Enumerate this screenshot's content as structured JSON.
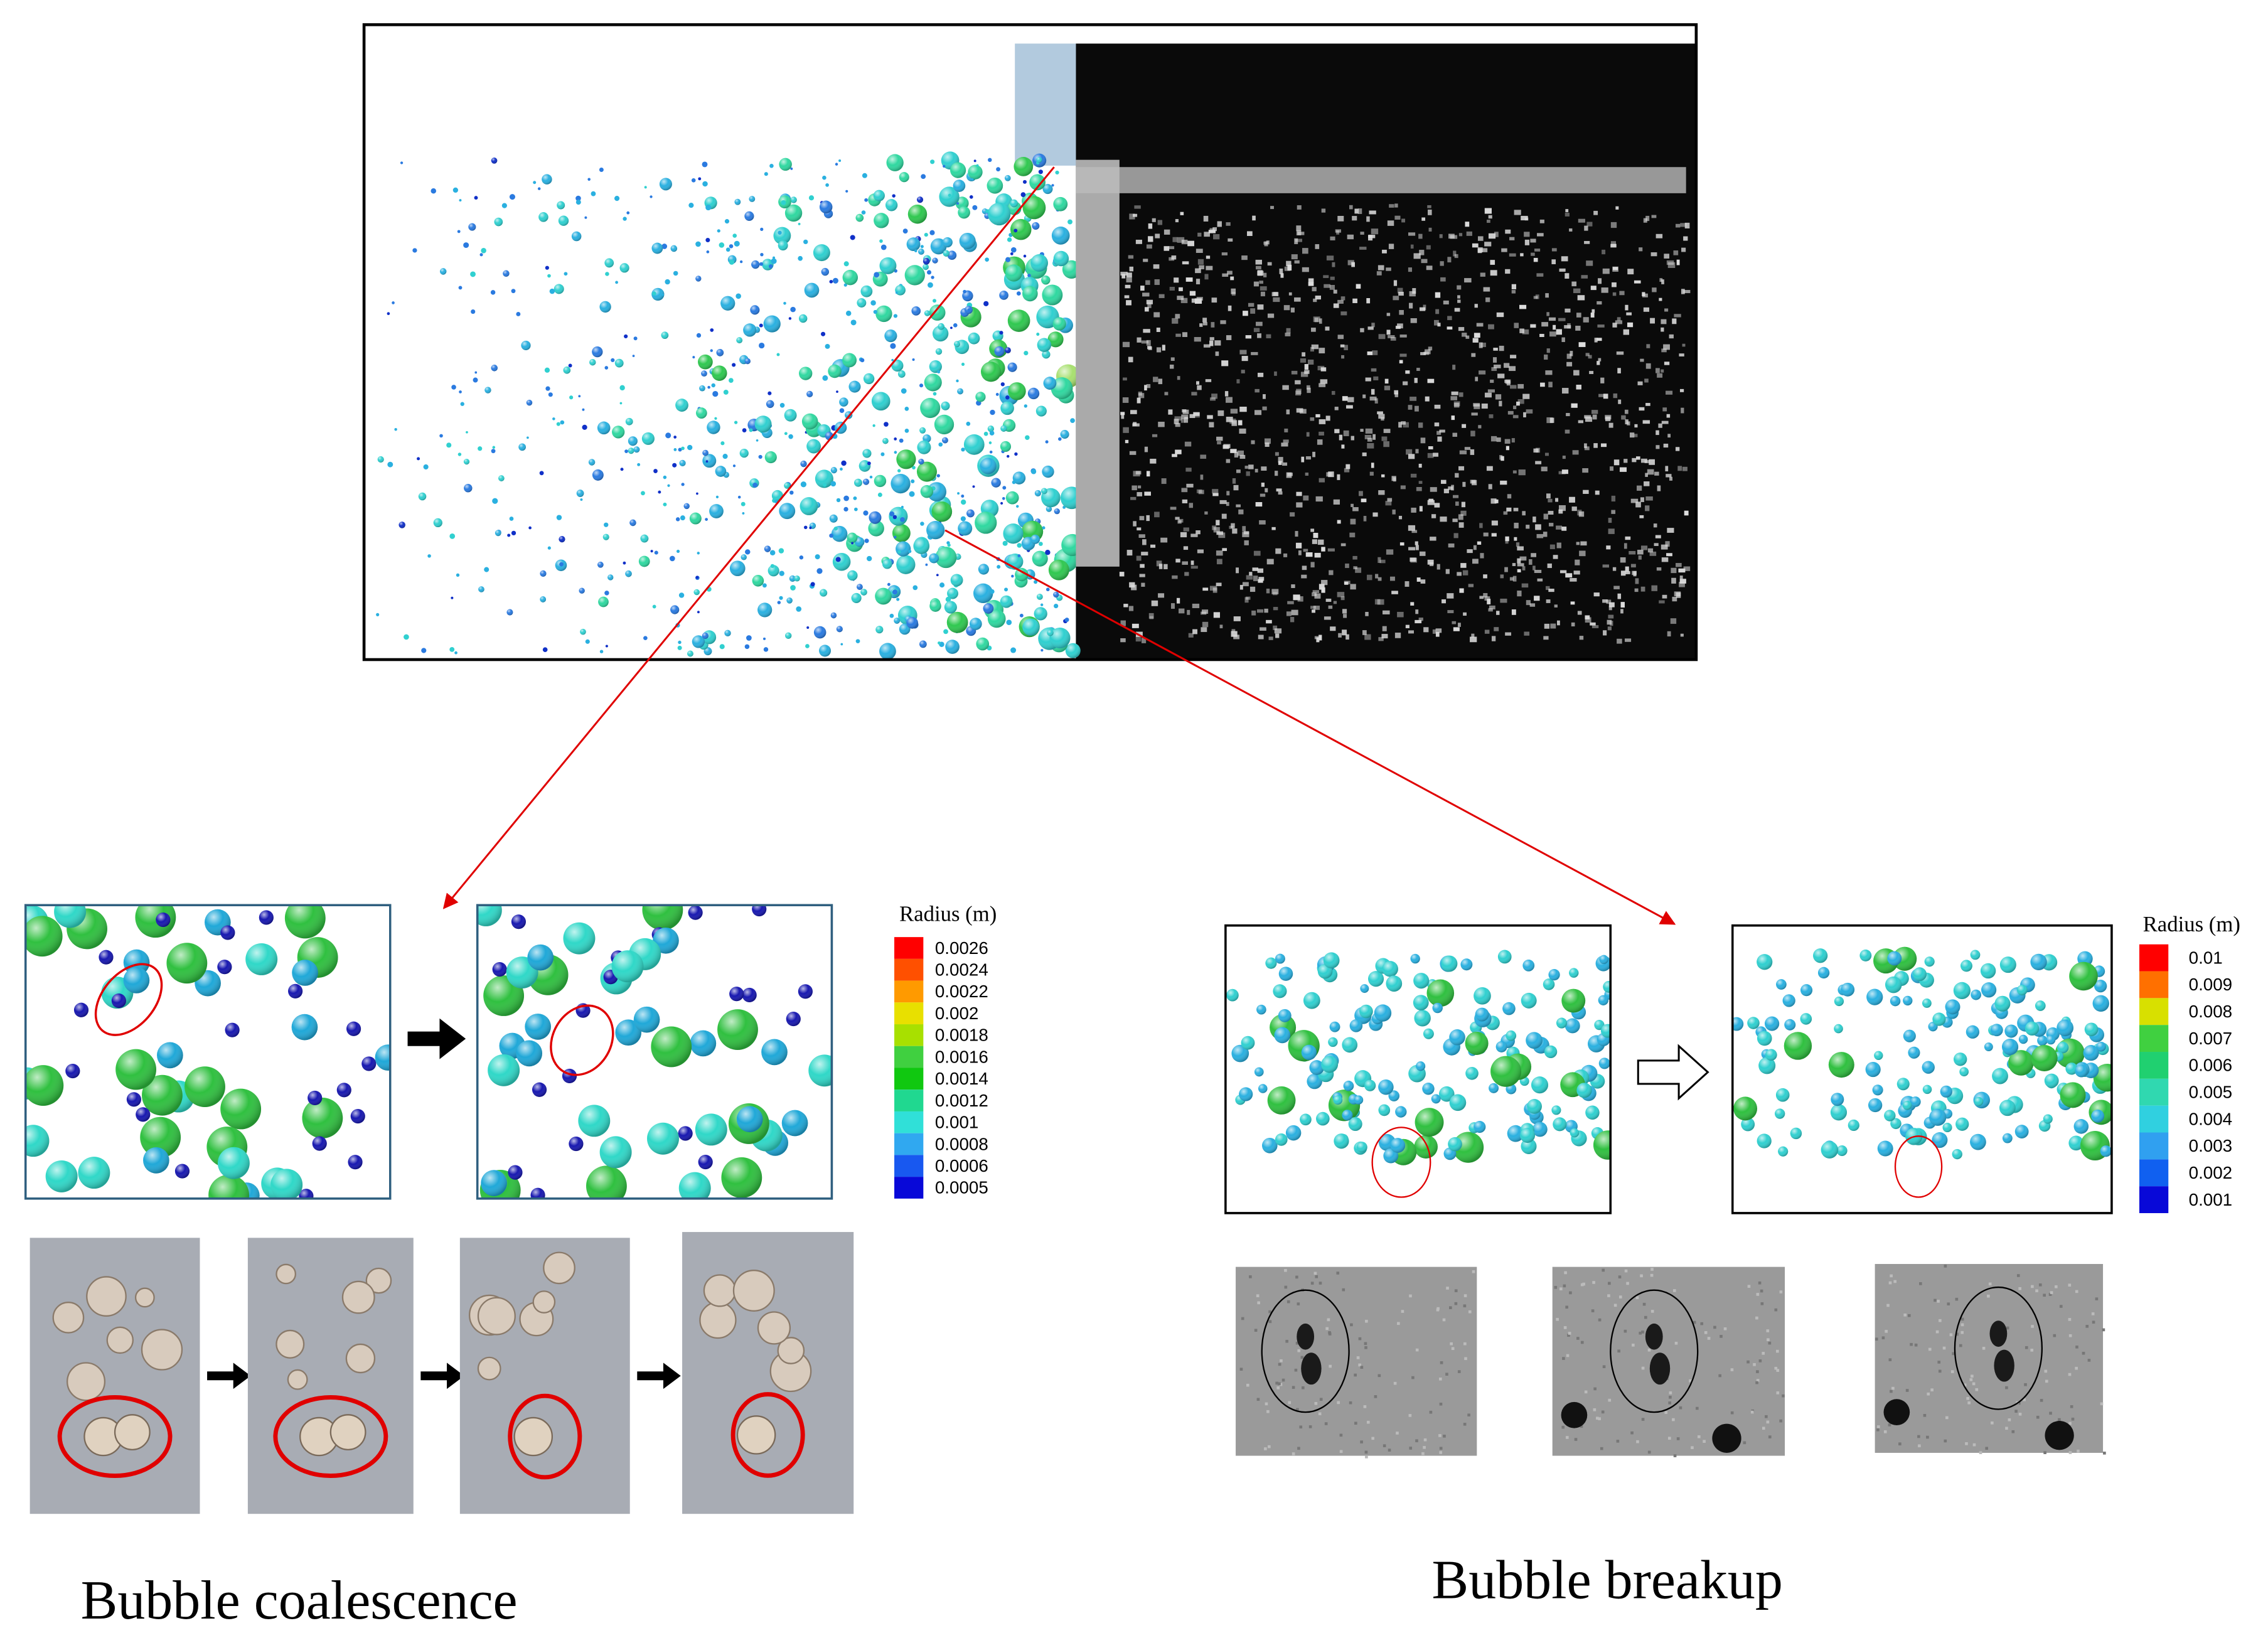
{
  "coalescence": {
    "legend": {
      "title": "Radius (m)",
      "labels": [
        0.0026,
        0.0024,
        0.0022,
        0.002,
        0.0018,
        0.0016,
        0.0014,
        0.0012,
        0.001,
        0.0008,
        0.0006,
        0.0005
      ]
    },
    "caption": "Bubble coalescence"
  },
  "breakup": {
    "legend": {
      "title": "Radius (m)",
      "labels": [
        0.01,
        0.009,
        0.008,
        0.007,
        0.006,
        0.005,
        0.004,
        0.003,
        0.002,
        0.001
      ]
    },
    "caption": "Bubble breakup"
  }
}
